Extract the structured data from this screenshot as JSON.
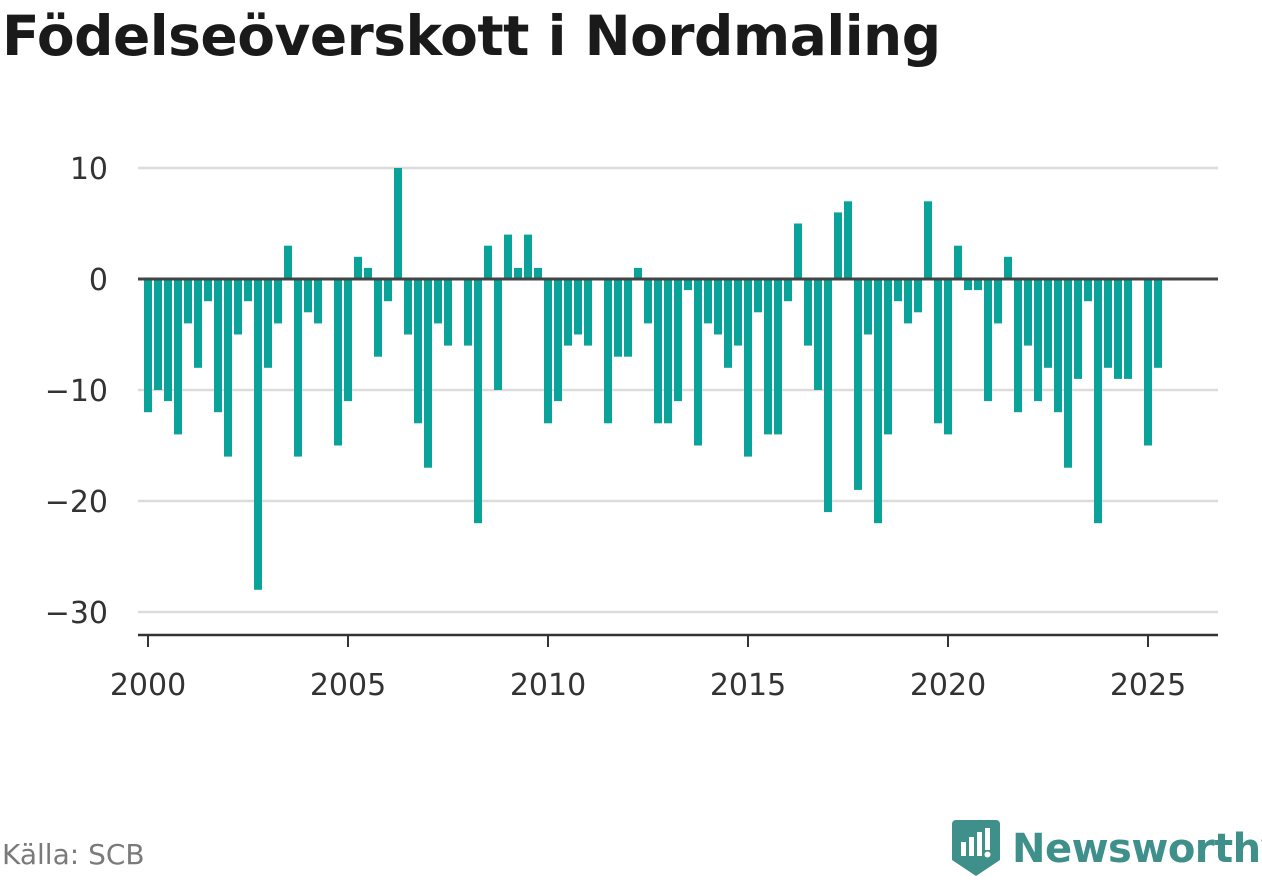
{
  "title": "Födelseöverskott i Nordmaling",
  "source": "Källa: SCB",
  "brand": {
    "name": "Newsworthy",
    "color": "#3f8f8a"
  },
  "colors": {
    "bar": "#0aa39a",
    "grid": "#dcdcdc",
    "zero": "#444444",
    "axis": "#333333"
  },
  "chart_data": {
    "type": "bar",
    "title": "Födelseöverskott i Nordmaling",
    "xlabel": "",
    "ylabel": "",
    "ylim": [
      -32,
      11
    ],
    "y_ticks": [
      10,
      0,
      -10,
      -20,
      -30
    ],
    "y_tick_labels": [
      "10",
      "0",
      "−10",
      "−20",
      "−30"
    ],
    "x_range": [
      1999.75,
      2026.75
    ],
    "x_ticks": [
      2000,
      2005,
      2010,
      2015,
      2020,
      2025
    ],
    "x_tick_labels": [
      "2000",
      "2005",
      "2010",
      "2015",
      "2020",
      "2025"
    ],
    "grid": true,
    "x": [
      2000.0,
      2000.25,
      2000.5,
      2000.75,
      2001.0,
      2001.25,
      2001.5,
      2001.75,
      2002.0,
      2002.25,
      2002.5,
      2002.75,
      2003.0,
      2003.25,
      2003.5,
      2003.75,
      2004.0,
      2004.25,
      2004.5,
      2004.75,
      2005.0,
      2005.25,
      2005.5,
      2005.75,
      2006.0,
      2006.25,
      2006.5,
      2006.75,
      2007.0,
      2007.25,
      2007.5,
      2007.75,
      2008.0,
      2008.25,
      2008.5,
      2008.75,
      2009.0,
      2009.25,
      2009.5,
      2009.75,
      2010.0,
      2010.25,
      2010.5,
      2010.75,
      2011.0,
      2011.25,
      2011.5,
      2011.75,
      2012.0,
      2012.25,
      2012.5,
      2012.75,
      2013.0,
      2013.25,
      2013.5,
      2013.75,
      2014.0,
      2014.25,
      2014.5,
      2014.75,
      2015.0,
      2015.25,
      2015.5,
      2015.75,
      2016.0,
      2016.25,
      2016.5,
      2016.75,
      2017.0,
      2017.25,
      2017.5,
      2017.75,
      2018.0,
      2018.25,
      2018.5,
      2018.75,
      2019.0,
      2019.25,
      2019.5,
      2019.75,
      2020.0,
      2020.25,
      2020.5,
      2020.75,
      2021.0,
      2021.25,
      2021.5,
      2021.75,
      2022.0,
      2022.25,
      2022.5,
      2022.75,
      2023.0,
      2023.25,
      2023.5,
      2023.75,
      2024.0,
      2024.25,
      2024.5,
      2024.75,
      2025.0,
      2025.25,
      2025.5,
      2025.75
    ],
    "values": [
      -12,
      -10,
      -11,
      -14,
      -4,
      -8,
      -2,
      -12,
      -16,
      -5,
      -2,
      -28,
      -8,
      -4,
      3,
      -16,
      -3,
      -4,
      0,
      -15,
      -11,
      2,
      1,
      -7,
      -2,
      10,
      -5,
      -13,
      -17,
      -4,
      -6,
      0,
      -6,
      -22,
      3,
      -10,
      4,
      1,
      4,
      1,
      -13,
      -11,
      -6,
      -5,
      -6,
      0,
      -13,
      -7,
      -7,
      1,
      -4,
      -13,
      -13,
      -11,
      -1,
      -15,
      -4,
      -5,
      -8,
      -6,
      -16,
      -3,
      -14,
      -14,
      -2,
      5,
      -6,
      -10,
      -21,
      6,
      7,
      -19,
      -5,
      -22,
      -14,
      -2,
      -4,
      -3,
      7,
      -13,
      -14,
      3,
      -1,
      -1,
      -11,
      -4,
      2,
      -12,
      -6,
      -11,
      -8,
      -12,
      -17,
      -9,
      -2,
      -22,
      -8,
      -9,
      -9,
      0,
      -15,
      -8,
      null,
      null
    ]
  }
}
